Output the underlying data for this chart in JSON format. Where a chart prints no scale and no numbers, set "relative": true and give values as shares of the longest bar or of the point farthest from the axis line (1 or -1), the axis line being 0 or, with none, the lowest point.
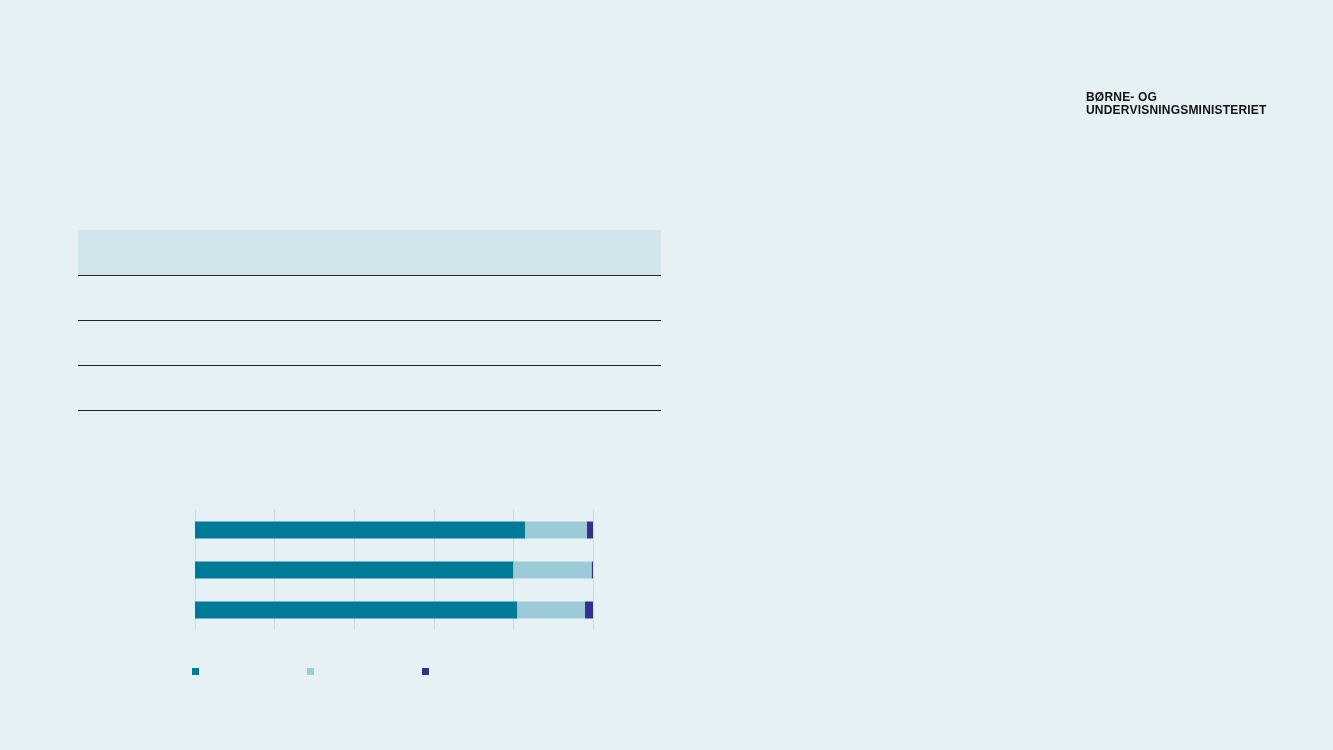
{
  "chart_data": {
    "type": "bar",
    "orientation": "horizontal",
    "stacked": true,
    "relative": true,
    "grid": "x",
    "categories": [
      null,
      null,
      null
    ],
    "series": [
      {
        "color": "#007a99",
        "values": [
          0.83,
          0.8,
          0.81
        ]
      },
      {
        "color": "#9ccad6",
        "values": [
          0.155,
          0.197,
          0.17
        ]
      },
      {
        "color": "#35308c",
        "values": [
          0.015,
          0.003,
          0.02
        ]
      }
    ],
    "annotations": [
      "BØRNE- OG",
      "UNDERVISNINGSMINISTERIET"
    ]
  }
}
